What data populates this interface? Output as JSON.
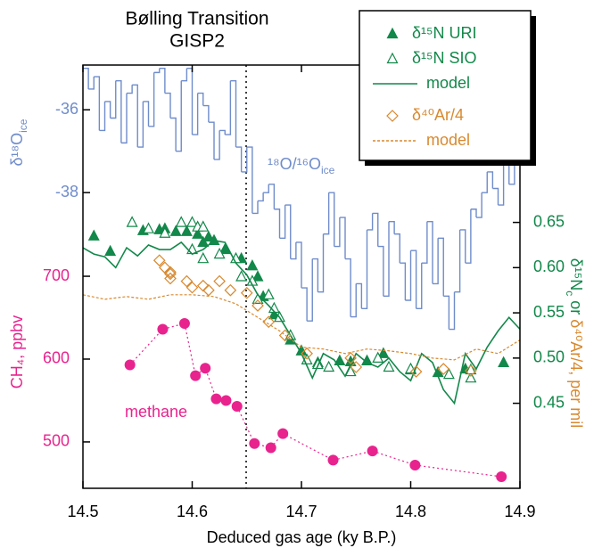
{
  "chart_data": {
    "type": "line",
    "title": "Bølling Transition",
    "subtitle": "GISP2",
    "x_label": "Deduced gas age (ky B.P.)",
    "xlim": [
      14.5,
      14.9
    ],
    "xticks": [
      14.5,
      14.6,
      14.7,
      14.8,
      14.9
    ],
    "axes": {
      "d18o": {
        "side": "left",
        "color": "#6f8ccb",
        "lim": [
          -45.14,
          -34.92
        ],
        "ticks": [
          -36,
          -38
        ],
        "label": "δ¹⁸O",
        "label_sub": "ice"
      },
      "ch4": {
        "side": "left",
        "color": "#e8238e",
        "lim": [
          444,
          955
        ],
        "ticks": [
          500,
          600,
          700
        ],
        "label": "CH₄, ppbv"
      },
      "d15n": {
        "side": "right",
        "color": "#12884a",
        "lim": [
          0.356,
          0.824
        ],
        "ticks": [
          0.45,
          {
            "value": 0.5,
            "label": "0.50"
          },
          0.55,
          {
            "value": 0.6,
            "label": "0.60"
          },
          0.65
        ],
        "label_green": "δ¹⁵N",
        "label_sub": "c",
        "label_mid": "or",
        "label_orange": "δ⁴⁰Ar/4, per mil",
        "label_orange_color": "#d8892f"
      }
    },
    "annotations": [
      {
        "text": "¹⁸O/¹⁶O",
        "sub": "ice",
        "color": "#6f8ccb"
      },
      {
        "text": "methane",
        "color": "#e8238e"
      }
    ],
    "series": [
      {
        "color": "#6f8ccb",
        "axis": "d18o",
        "style": "step",
        "legend": false,
        "x": [
          14.5,
          14.505,
          14.51,
          14.515,
          14.52,
          14.525,
          14.53,
          14.535,
          14.54,
          14.545,
          14.55,
          14.555,
          14.56,
          14.565,
          14.57,
          14.575,
          14.58,
          14.585,
          14.59,
          14.595,
          14.6,
          14.605,
          14.61,
          14.615,
          14.62,
          14.625,
          14.63,
          14.635,
          14.64,
          14.645,
          14.65,
          14.655,
          14.66,
          14.665,
          14.67,
          14.675,
          14.68,
          14.685,
          14.69,
          14.695,
          14.7,
          14.705,
          14.71,
          14.715,
          14.72,
          14.725,
          14.73,
          14.735,
          14.74,
          14.745,
          14.75,
          14.755,
          14.76,
          14.765,
          14.77,
          14.775,
          14.78,
          14.785,
          14.79,
          14.795,
          14.8,
          14.805,
          14.81,
          14.815,
          14.82,
          14.825,
          14.83,
          14.835,
          14.84,
          14.845,
          14.85,
          14.855,
          14.86,
          14.865,
          14.87,
          14.875,
          14.88,
          14.885,
          14.89,
          14.895
        ],
        "values": [
          -35.0,
          -35.5,
          -35.2,
          -36.5,
          -35.8,
          -36.2,
          -35.3,
          -36.8,
          -35.6,
          -35.4,
          -36.9,
          -35.8,
          -36.4,
          -35.1,
          -35.0,
          -35.6,
          -36.2,
          -37.0,
          -35.3,
          -35.0,
          -36.6,
          -35.6,
          -35.9,
          -36.3,
          -37.2,
          -36.5,
          -36.6,
          -35.3,
          -36.9,
          -37.5,
          -36.9,
          -38.5,
          -38.2,
          -38.0,
          -37.8,
          -38.4,
          -39.1,
          -38.3,
          -39.6,
          -39.2,
          -40.3,
          -41.1,
          -39.6,
          -40.4,
          -39.0,
          -38.0,
          -39.3,
          -38.6,
          -39.6,
          -41.0,
          -40.2,
          -40.8,
          -38.9,
          -38.5,
          -39.3,
          -40.5,
          -38.7,
          -39.0,
          -39.7,
          -40.6,
          -39.4,
          -40.8,
          -39.7,
          -38.7,
          -40.2,
          -39.1,
          -40.5,
          -41.3,
          -40.4,
          -38.9,
          -39.7,
          -38.4,
          -38.6,
          -38.0,
          -37.5,
          -37.9,
          -38.3,
          -37.1,
          -37.8,
          -37.3
        ]
      },
      {
        "color": "#e8238e",
        "axis": "ch4",
        "style": "markers",
        "marker": "circle",
        "connect": "dotted",
        "legend": false,
        "x": [
          14.543,
          14.573,
          14.593,
          14.603,
          14.612,
          14.622,
          14.631,
          14.641,
          14.657,
          14.672,
          14.683,
          14.729,
          14.765,
          14.804,
          14.883
        ],
        "values": [
          593,
          636,
          643,
          580,
          589,
          552,
          550,
          543,
          498,
          493,
          510,
          478,
          489,
          472,
          458
        ]
      },
      {
        "name": "δ¹⁵N URI",
        "color": "#12884a",
        "axis": "d15n",
        "style": "markers",
        "marker": "triangle-filled",
        "legend": true,
        "x": [
          14.51,
          14.525,
          14.555,
          14.57,
          14.575,
          14.585,
          14.595,
          14.605,
          14.61,
          14.615,
          14.62,
          14.63,
          14.645,
          14.655,
          14.66,
          14.665,
          14.675,
          14.69,
          14.7,
          14.715,
          14.735,
          14.745,
          14.76,
          14.775,
          14.8,
          14.825,
          14.85,
          14.885
        ],
        "values": [
          0.635,
          0.618,
          0.641,
          0.642,
          0.643,
          0.64,
          0.64,
          0.637,
          0.628,
          0.634,
          0.63,
          0.62,
          0.61,
          0.602,
          0.59,
          0.568,
          0.548,
          0.52,
          0.508,
          0.495,
          0.497,
          0.496,
          0.497,
          0.505,
          0.487,
          0.484,
          0.488,
          0.495
        ]
      },
      {
        "name": "δ¹⁵N SIO",
        "color": "#12884a",
        "axis": "d15n",
        "style": "markers",
        "marker": "triangle-open",
        "legend": true,
        "x": [
          14.545,
          14.56,
          14.575,
          14.59,
          14.6,
          14.605,
          14.61,
          14.6,
          14.61,
          14.625,
          14.64,
          14.645,
          14.655,
          14.66,
          14.67,
          14.675,
          14.68,
          14.69,
          14.705,
          14.715,
          14.725,
          14.745,
          14.77,
          14.78,
          14.8,
          14.835,
          14.855,
          14.855
        ],
        "values": [
          0.65,
          0.643,
          0.638,
          0.65,
          0.65,
          0.645,
          0.645,
          0.62,
          0.61,
          0.615,
          0.61,
          0.59,
          0.585,
          0.565,
          0.57,
          0.555,
          0.545,
          0.525,
          0.498,
          0.493,
          0.49,
          0.485,
          0.5,
          0.49,
          0.488,
          0.482,
          0.478,
          0.487
        ]
      },
      {
        "name": "model",
        "color": "#12884a",
        "axis": "d15n",
        "style": "line",
        "legend": true,
        "x": [
          14.5,
          14.51,
          14.52,
          14.53,
          14.54,
          14.55,
          14.56,
          14.57,
          14.58,
          14.59,
          14.6,
          14.61,
          14.62,
          14.63,
          14.64,
          14.65,
          14.66,
          14.67,
          14.68,
          14.69,
          14.7,
          14.71,
          14.72,
          14.73,
          14.74,
          14.75,
          14.76,
          14.77,
          14.78,
          14.79,
          14.8,
          14.81,
          14.82,
          14.83,
          14.84,
          14.85,
          14.86,
          14.87,
          14.88,
          14.89,
          14.9
        ],
        "values": [
          0.622,
          0.615,
          0.612,
          0.6,
          0.622,
          0.613,
          0.625,
          0.62,
          0.62,
          0.628,
          0.615,
          0.62,
          0.63,
          0.628,
          0.605,
          0.592,
          0.57,
          0.558,
          0.545,
          0.525,
          0.505,
          0.478,
          0.505,
          0.498,
          0.48,
          0.505,
          0.495,
          0.49,
          0.5,
          0.485,
          0.475,
          0.505,
          0.495,
          0.465,
          0.45,
          0.505,
          0.488,
          0.512,
          0.53,
          0.545,
          0.532
        ]
      },
      {
        "name": "δ⁴⁰Ar/4",
        "color": "#d8892f",
        "axis": "d15n",
        "style": "markers",
        "marker": "diamond-open",
        "legend": true,
        "x": [
          14.57,
          14.575,
          14.58,
          14.58,
          14.58,
          14.595,
          14.6,
          14.61,
          14.615,
          14.625,
          14.635,
          14.65,
          14.66,
          14.67,
          14.685,
          14.705,
          14.745,
          14.75,
          14.805,
          14.83,
          14.855
        ],
        "values": [
          0.608,
          0.6,
          0.595,
          0.593,
          0.588,
          0.585,
          0.578,
          0.58,
          0.575,
          0.585,
          0.575,
          0.572,
          0.558,
          0.54,
          0.525,
          0.505,
          0.5,
          0.49,
          0.485,
          0.488,
          0.486
        ]
      },
      {
        "name": "model",
        "color": "#d8892f",
        "axis": "d15n",
        "style": "dashed-line",
        "legend": true,
        "x": [
          14.5,
          14.52,
          14.54,
          14.56,
          14.58,
          14.6,
          14.62,
          14.64,
          14.66,
          14.68,
          14.7,
          14.72,
          14.74,
          14.76,
          14.78,
          14.8,
          14.82,
          14.84,
          14.86,
          14.88,
          14.9
        ],
        "values": [
          0.57,
          0.565,
          0.568,
          0.565,
          0.57,
          0.57,
          0.568,
          0.56,
          0.545,
          0.53,
          0.512,
          0.51,
          0.505,
          0.51,
          0.508,
          0.505,
          0.5,
          0.498,
          0.51,
          0.505,
          0.52
        ]
      }
    ]
  }
}
